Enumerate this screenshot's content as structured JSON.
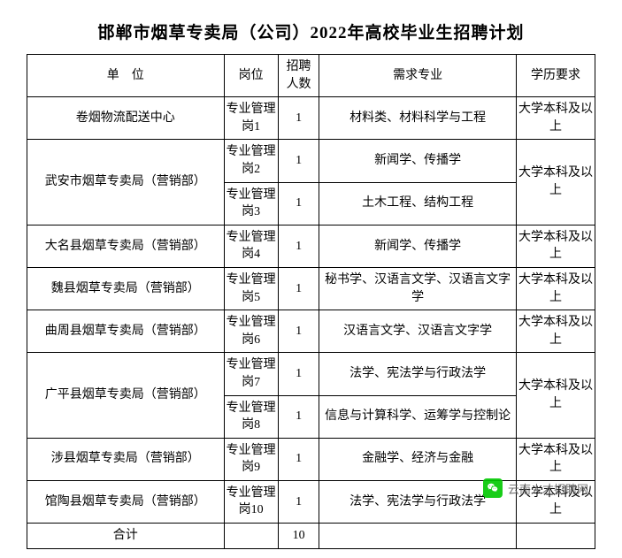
{
  "title": "邯郸市烟草专卖局（公司）2022年高校毕业生招聘计划",
  "headers": {
    "unit": "单　位",
    "post": "岗位",
    "count": "招聘人数",
    "major": "需求专业",
    "edu": "学历要求"
  },
  "rows": [
    {
      "unit": "卷烟物流配送中心",
      "post": "专业管理岗1",
      "count": "1",
      "major": "材料类、材料科学与工程",
      "edu": "大学本科及以上",
      "unit_rowspan": 1,
      "edu_rowspan": 1
    },
    {
      "unit": "武安市烟草专卖局（营销部）",
      "post": "专业管理岗2",
      "count": "1",
      "major": "新闻学、传播学",
      "edu": "大学本科及以上",
      "unit_rowspan": 2,
      "edu_rowspan": 2
    },
    {
      "unit": "",
      "post": "专业管理岗3",
      "count": "1",
      "major": "土木工程、结构工程",
      "edu": "",
      "unit_rowspan": 0,
      "edu_rowspan": 0
    },
    {
      "unit": "大名县烟草专卖局（营销部）",
      "post": "专业管理岗4",
      "count": "1",
      "major": "新闻学、传播学",
      "edu": "大学本科及以上",
      "unit_rowspan": 1,
      "edu_rowspan": 1
    },
    {
      "unit": "魏县烟草专卖局（营销部）",
      "post": "专业管理岗5",
      "count": "1",
      "major": "秘书学、汉语言文学、汉语言文字学",
      "edu": "大学本科及以上",
      "unit_rowspan": 1,
      "edu_rowspan": 1
    },
    {
      "unit": "曲周县烟草专卖局（营销部）",
      "post": "专业管理岗6",
      "count": "1",
      "major": "汉语言文学、汉语言文字学",
      "edu": "大学本科及以上",
      "unit_rowspan": 1,
      "edu_rowspan": 1
    },
    {
      "unit": "广平县烟草专卖局（营销部）",
      "post": "专业管理岗7",
      "count": "1",
      "major": "法学、宪法学与行政法学",
      "edu": "大学本科及以上",
      "unit_rowspan": 2,
      "edu_rowspan": 2
    },
    {
      "unit": "",
      "post": "专业管理岗8",
      "count": "1",
      "major": "信息与计算科学、运筹学与控制论",
      "edu": "",
      "unit_rowspan": 0,
      "edu_rowspan": 0
    },
    {
      "unit": "涉县烟草专卖局（营销部）",
      "post": "专业管理岗9",
      "count": "1",
      "major": "金融学、经济与金融",
      "edu": "大学本科及以上",
      "unit_rowspan": 1,
      "edu_rowspan": 1
    },
    {
      "unit": "馆陶县烟草专卖局（营销部）",
      "post": "专业管理岗10",
      "count": "1",
      "major": "法学、宪法学与行政法学",
      "edu": "大学本科及以上",
      "unit_rowspan": 1,
      "edu_rowspan": 1
    }
  ],
  "total": {
    "label": "合计",
    "count": "10"
  },
  "watermark": "云南人才招聘网",
  "colors": {
    "border": "#000000",
    "background": "#ffffff",
    "wechat_green": "#00c800",
    "wm_text": "#666666"
  }
}
